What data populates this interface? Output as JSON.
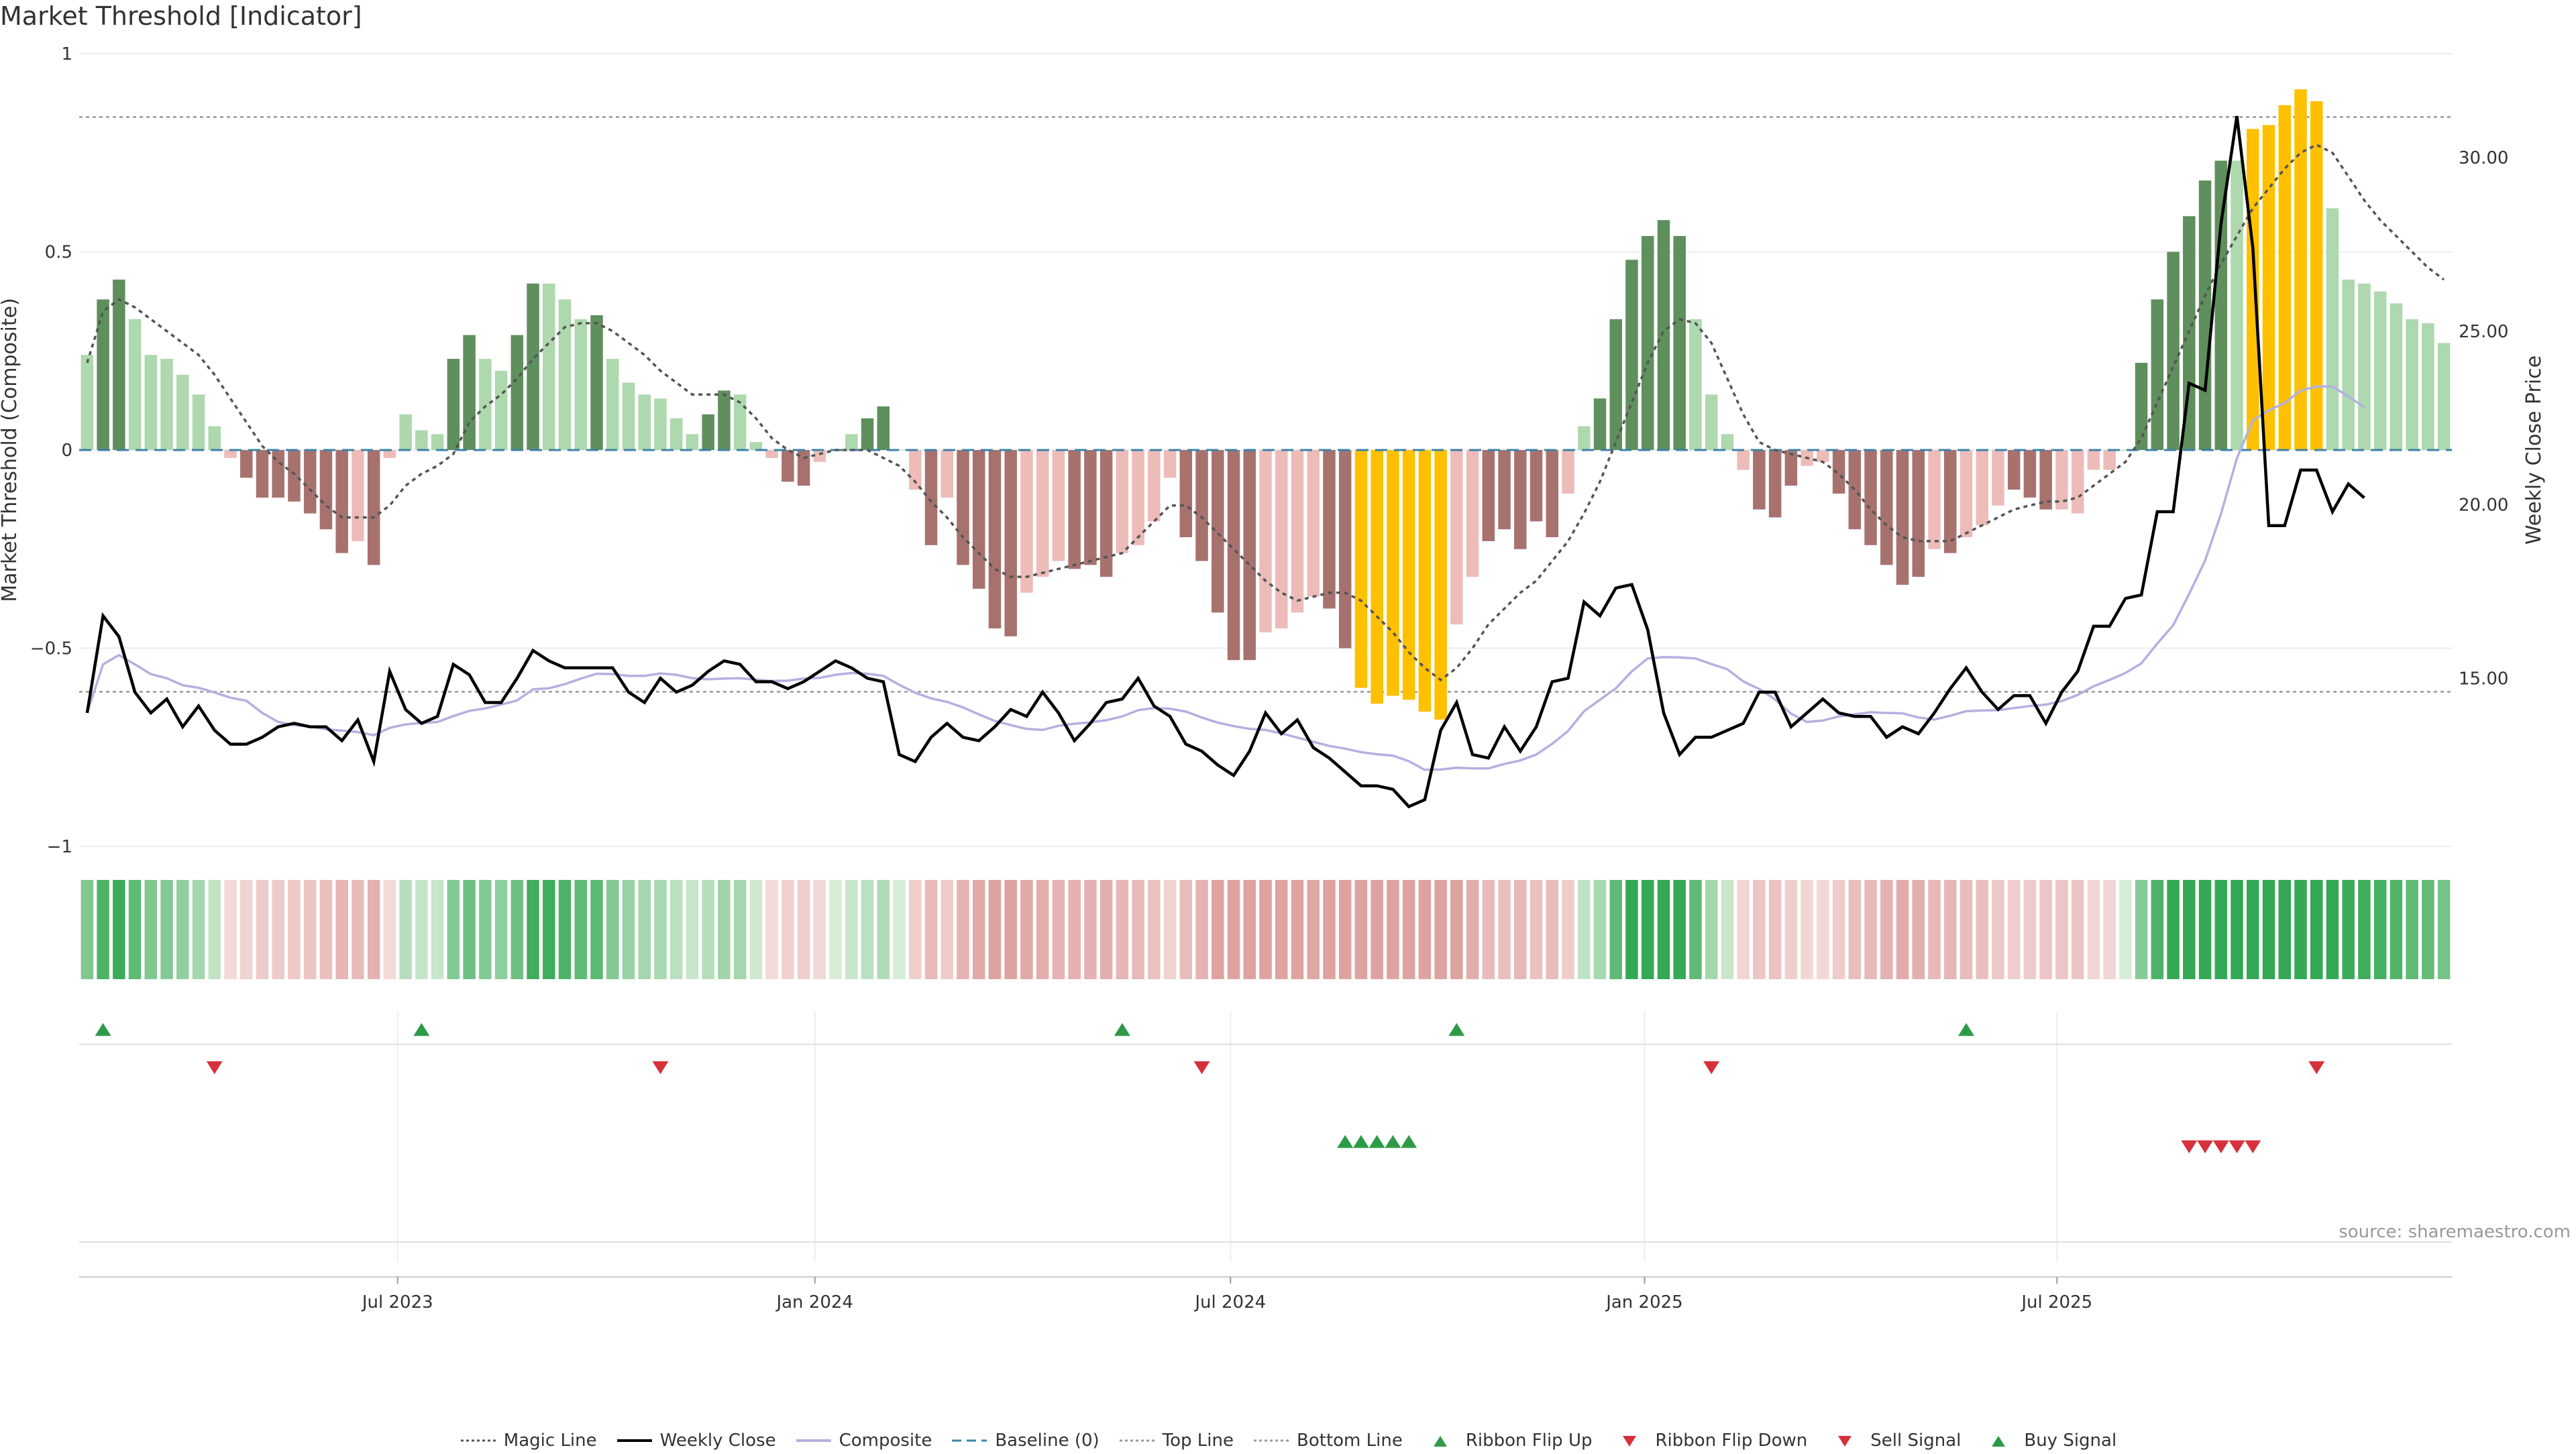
{
  "title": "Market Threshold [Indicator]",
  "source": "source: sharemaestro.com",
  "colors": {
    "dark_green": "#5f8f5d",
    "light_green": "#aed8ad",
    "dark_red": "#a7726e",
    "light_red": "#edbcb8",
    "gold": "#ffc000",
    "weekly_close": "#000000",
    "composite": "#b3b0e0",
    "magic_line": "#555555",
    "baseline": "#3d82a8",
    "up_marker": "#2e9a48",
    "down_marker": "#d6303b"
  },
  "legend": [
    {
      "label": "Magic Line",
      "style": "dotted-line",
      "color": "#555555"
    },
    {
      "label": "Weekly Close",
      "style": "solid-line",
      "color": "#000000"
    },
    {
      "label": "Composite",
      "style": "solid-line",
      "color": "#b3b0e0"
    },
    {
      "label": "Baseline (0)",
      "style": "dashed-line",
      "color": "#3d82a8"
    },
    {
      "label": "Top Line",
      "style": "dotted-line",
      "color": "#999999"
    },
    {
      "label": "Bottom Line",
      "style": "dotted-line",
      "color": "#999999"
    },
    {
      "label": "Ribbon Flip Up",
      "style": "triangle-up",
      "color": "#2e9a48"
    },
    {
      "label": "Ribbon Flip Down",
      "style": "triangle-down",
      "color": "#d6303b"
    },
    {
      "label": "Sell Signal",
      "style": "triangle-down",
      "color": "#d6303b"
    },
    {
      "label": "Buy Signal",
      "style": "triangle-up",
      "color": "#2e9a48"
    }
  ],
  "chart_data": {
    "type": "bar",
    "title": "Market Threshold [Indicator]",
    "ylabel": "Market Threshold (Composite)",
    "y2label": "Weekly Close Price",
    "ylim": [
      -1,
      1
    ],
    "y2lim": [
      10.0,
      33.0
    ],
    "yticks": [
      1,
      0.5,
      0,
      -0.5,
      -1
    ],
    "ytick_labels": [
      "1",
      "0.5",
      "0",
      "−0.5",
      "−1"
    ],
    "y2ticks": [
      30,
      25,
      20,
      15
    ],
    "y2tick_labels": [
      "30.00",
      "25.00",
      "20.00",
      "15.00"
    ],
    "xticks": [
      "Jul 2023",
      "Jan 2024",
      "Jul 2024",
      "Jan 2025",
      "Jul 2025"
    ],
    "top_line": 0.84,
    "bottom_line": -0.61,
    "composite_bars": [
      0.24,
      0.38,
      0.43,
      0.33,
      0.24,
      0.23,
      0.19,
      0.14,
      0.06,
      -0.02,
      -0.07,
      -0.12,
      -0.12,
      -0.13,
      -0.16,
      -0.2,
      -0.26,
      -0.23,
      -0.29,
      -0.02,
      0.09,
      0.05,
      0.04,
      0.23,
      0.29,
      0.23,
      0.2,
      0.29,
      0.42,
      0.42,
      0.38,
      0.33,
      0.34,
      0.23,
      0.17,
      0.14,
      0.13,
      0.08,
      0.04,
      0.09,
      0.15,
      0.14,
      0.02,
      -0.02,
      -0.08,
      -0.09,
      -0.03,
      0.0,
      0.04,
      0.08,
      0.11,
      0.0,
      -0.1,
      -0.24,
      -0.12,
      -0.29,
      -0.35,
      -0.45,
      -0.47,
      -0.36,
      -0.32,
      -0.28,
      -0.3,
      -0.29,
      -0.32,
      -0.26,
      -0.24,
      -0.18,
      -0.07,
      -0.22,
      -0.28,
      -0.41,
      -0.53,
      -0.53,
      -0.46,
      -0.45,
      -0.41,
      -0.37,
      -0.4,
      -0.5,
      -0.6,
      -0.64,
      -0.62,
      -0.63,
      -0.66,
      -0.68,
      -0.44,
      -0.32,
      -0.23,
      -0.2,
      -0.25,
      -0.18,
      -0.22,
      -0.11,
      0.06,
      0.13,
      0.33,
      0.48,
      0.54,
      0.58,
      0.54,
      0.33,
      0.14,
      0.04,
      -0.05,
      -0.15,
      -0.17,
      -0.09,
      -0.04,
      -0.03,
      -0.11,
      -0.2,
      -0.24,
      -0.29,
      -0.34,
      -0.32,
      -0.25,
      -0.26,
      -0.22,
      -0.19,
      -0.14,
      -0.1,
      -0.12,
      -0.15,
      -0.15,
      -0.16,
      -0.05,
      -0.05,
      0.0,
      0.22,
      0.38,
      0.5,
      0.59,
      0.68,
      0.73,
      0.73,
      0.81,
      0.82,
      0.87,
      0.91,
      0.88,
      0.61,
      0.43,
      0.42,
      0.4,
      0.37,
      0.33,
      0.32,
      0.27
    ],
    "bar_shades": [
      "L",
      "D",
      "D",
      "L",
      "L",
      "L",
      "L",
      "L",
      "L",
      "L",
      "D",
      "D",
      "D",
      "D",
      "D",
      "D",
      "D",
      "L",
      "D",
      "L",
      "L",
      "L",
      "L",
      "D",
      "D",
      "L",
      "L",
      "D",
      "D",
      "L",
      "L",
      "L",
      "D",
      "L",
      "L",
      "L",
      "L",
      "L",
      "L",
      "D",
      "D",
      "L",
      "L",
      "L",
      "D",
      "D",
      "L",
      "L",
      "L",
      "D",
      "D",
      "L",
      "L",
      "D",
      "L",
      "D",
      "D",
      "D",
      "D",
      "L",
      "L",
      "L",
      "D",
      "D",
      "D",
      "L",
      "L",
      "L",
      "L",
      "D",
      "D",
      "D",
      "D",
      "D",
      "L",
      "L",
      "L",
      "L",
      "D",
      "D",
      "G",
      "G",
      "G",
      "G",
      "G",
      "G",
      "L",
      "L",
      "D",
      "D",
      "D",
      "D",
      "D",
      "L",
      "L",
      "D",
      "D",
      "D",
      "D",
      "D",
      "D",
      "L",
      "L",
      "L",
      "L",
      "D",
      "D",
      "D",
      "L",
      "L",
      "D",
      "D",
      "D",
      "D",
      "D",
      "D",
      "L",
      "D",
      "L",
      "L",
      "L",
      "D",
      "D",
      "D",
      "L",
      "L",
      "L",
      "L",
      "L",
      "D",
      "D",
      "D",
      "D",
      "D",
      "D",
      "L",
      "G",
      "G",
      "G",
      "G",
      "G",
      "L",
      "L",
      "L",
      "L",
      "L",
      "L",
      "L"
    ],
    "magic_line": [
      0.22,
      0.35,
      0.38,
      0.36,
      0.33,
      0.3,
      0.27,
      0.24,
      0.19,
      0.13,
      0.07,
      0.01,
      -0.03,
      -0.06,
      -0.1,
      -0.14,
      -0.17,
      -0.17,
      -0.17,
      -0.14,
      -0.09,
      -0.06,
      -0.04,
      -0.01,
      0.07,
      0.11,
      0.14,
      0.18,
      0.23,
      0.27,
      0.31,
      0.32,
      0.32,
      0.3,
      0.27,
      0.24,
      0.2,
      0.17,
      0.14,
      0.14,
      0.14,
      0.12,
      0.08,
      0.03,
      0.0,
      -0.02,
      -0.01,
      0.0,
      0.0,
      0.0,
      -0.02,
      -0.04,
      -0.08,
      -0.13,
      -0.17,
      -0.22,
      -0.26,
      -0.3,
      -0.32,
      -0.32,
      -0.31,
      -0.3,
      -0.29,
      -0.28,
      -0.27,
      -0.26,
      -0.22,
      -0.18,
      -0.14,
      -0.14,
      -0.17,
      -0.21,
      -0.25,
      -0.29,
      -0.33,
      -0.36,
      -0.38,
      -0.37,
      -0.36,
      -0.36,
      -0.38,
      -0.42,
      -0.46,
      -0.51,
      -0.55,
      -0.58,
      -0.55,
      -0.5,
      -0.44,
      -0.4,
      -0.36,
      -0.33,
      -0.28,
      -0.23,
      -0.16,
      -0.08,
      0.02,
      0.12,
      0.22,
      0.3,
      0.33,
      0.32,
      0.27,
      0.18,
      0.09,
      0.02,
      0.0,
      -0.01,
      -0.02,
      -0.03,
      -0.06,
      -0.1,
      -0.15,
      -0.19,
      -0.22,
      -0.23,
      -0.23,
      -0.23,
      -0.21,
      -0.19,
      -0.17,
      -0.15,
      -0.14,
      -0.13,
      -0.13,
      -0.12,
      -0.09,
      -0.06,
      -0.03,
      0.03,
      0.12,
      0.21,
      0.3,
      0.39,
      0.47,
      0.54,
      0.61,
      0.66,
      0.71,
      0.75,
      0.77,
      0.75,
      0.69,
      0.63,
      0.58,
      0.54,
      0.5,
      0.46,
      0.43
    ],
    "weekly_close": [
      14.0,
      16.8,
      16.2,
      14.6,
      14.0,
      14.4,
      13.6,
      14.2,
      13.5,
      13.1,
      13.1,
      13.3,
      13.6,
      13.7,
      13.6,
      13.6,
      13.2,
      13.8,
      12.6,
      15.2,
      14.1,
      13.7,
      13.9,
      15.4,
      15.1,
      14.3,
      14.3,
      15.0,
      15.8,
      15.5,
      15.3,
      15.3,
      15.3,
      15.3,
      14.6,
      14.3,
      15.0,
      14.6,
      14.8,
      15.2,
      15.5,
      15.4,
      14.9,
      14.9,
      14.7,
      14.9,
      15.2,
      15.5,
      15.3,
      15.0,
      14.9,
      12.8,
      12.6,
      13.3,
      13.7,
      13.3,
      13.2,
      13.6,
      14.1,
      13.9,
      14.6,
      14.0,
      13.2,
      13.7,
      14.3,
      14.4,
      15.0,
      14.2,
      13.9,
      13.1,
      12.9,
      12.5,
      12.2,
      12.9,
      14.0,
      13.4,
      13.8,
      13.0,
      12.7,
      12.3,
      11.9,
      11.9,
      11.8,
      11.3,
      11.5,
      13.5,
      14.3,
      12.8,
      12.7,
      13.6,
      12.9,
      13.6,
      14.9,
      15.0,
      17.2,
      16.8,
      17.6,
      17.7,
      16.4,
      14.0,
      12.8,
      13.3,
      13.3,
      13.5,
      13.7,
      14.6,
      14.6,
      13.6,
      14.0,
      14.4,
      14.0,
      13.9,
      13.9,
      13.3,
      13.6,
      13.4,
      14.0,
      14.7,
      15.3,
      14.6,
      14.1,
      14.5,
      14.5,
      13.7,
      14.6,
      15.2,
      16.5,
      16.5,
      17.3,
      17.4,
      19.8,
      19.8,
      23.5,
      23.3,
      28.1,
      31.2,
      27.4,
      19.4,
      19.4,
      21.0,
      21.0,
      19.8,
      20.6,
      20.2
    ]
  },
  "signals": {
    "ribbon_flip_up_weeks": [
      1,
      21,
      65,
      86,
      118
    ],
    "ribbon_flip_down_weeks": [
      8,
      36,
      70,
      102,
      140
    ],
    "buy_signal_weeks": [
      79,
      80,
      81,
      82,
      83
    ],
    "sell_signal_weeks": [
      132,
      133,
      134,
      135,
      136
    ]
  }
}
